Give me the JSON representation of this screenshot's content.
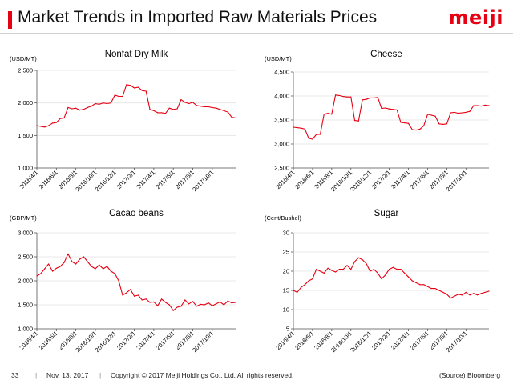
{
  "header": {
    "title": "Market Trends in Imported Raw Materials Prices",
    "logo": "meiji",
    "accent": "#e60012"
  },
  "footer": {
    "page": "33",
    "date": "Nov. 13, 2017",
    "copyright": "Copyright © 2017 Meiji Holdings Co., Ltd. All rights reserved.",
    "source": "(Source) Bloomberg",
    "separator": "|"
  },
  "chart_data": [
    {
      "type": "line",
      "title": "Nonfat Dry Milk",
      "ylabel": "(USD/MT)",
      "ylim": [
        1000,
        2500
      ],
      "yticks": [
        "1,000",
        "1,500",
        "2,000",
        "2,500"
      ],
      "ytick_values": [
        1000,
        1500,
        2000,
        2500
      ],
      "xticks": [
        "2016/4/1",
        "2016/6/1",
        "2016/8/1",
        "2016/10/1",
        "2016/12/1",
        "2017/2/1",
        "2017/4/1",
        "2017/6/1",
        "2017/8/1",
        "2017/10/1"
      ],
      "x": [
        0,
        0.2,
        0.4,
        0.6,
        0.8,
        1.0,
        1.2,
        1.4,
        1.6,
        1.8,
        2.0,
        2.2,
        2.4,
        2.6,
        2.8,
        3.0,
        3.2,
        3.4,
        3.6,
        3.8,
        4.0,
        4.2,
        4.4,
        4.6,
        4.8,
        5.0,
        5.2,
        5.4,
        5.6,
        5.8,
        6.0,
        6.2,
        6.4,
        6.6,
        6.8,
        7.0,
        7.2,
        7.4,
        7.6,
        7.8,
        8.0,
        8.2,
        8.4,
        8.6,
        8.8,
        9.0,
        9.2,
        9.4,
        9.6,
        9.8,
        10.0,
        10.2
      ],
      "series": [
        {
          "name": "Nonfat Dry Milk",
          "color": "#e60012",
          "values": [
            1650,
            1640,
            1630,
            1650,
            1690,
            1700,
            1760,
            1770,
            1930,
            1910,
            1920,
            1890,
            1900,
            1930,
            1950,
            1990,
            1980,
            2000,
            1990,
            2000,
            2120,
            2100,
            2100,
            2280,
            2270,
            2230,
            2240,
            2190,
            2180,
            1900,
            1880,
            1850,
            1850,
            1840,
            1920,
            1900,
            1910,
            2050,
            2010,
            1990,
            2010,
            1960,
            1950,
            1940,
            1940,
            1930,
            1920,
            1900,
            1880,
            1860,
            1780,
            1770
          ]
        }
      ]
    },
    {
      "type": "line",
      "title": "Cheese",
      "ylabel": "(USD/MT)",
      "ylim": [
        2500,
        4500
      ],
      "yticks": [
        "2,500",
        "3,000",
        "3,500",
        "4,000",
        "4,500"
      ],
      "ytick_values": [
        2500,
        3000,
        3500,
        4000,
        4500
      ],
      "xticks": [
        "2016/4/1",
        "2016/6/1",
        "2016/8/1",
        "2016/10/1",
        "2016/12/1",
        "2017/2/1",
        "2017/4/1",
        "2017/6/1",
        "2017/8/1",
        "2017/10/1"
      ],
      "x": [
        0,
        0.2,
        0.4,
        0.6,
        0.8,
        1.0,
        1.2,
        1.4,
        1.6,
        1.8,
        2.0,
        2.2,
        2.4,
        2.6,
        2.8,
        3.0,
        3.2,
        3.4,
        3.6,
        3.8,
        4.0,
        4.2,
        4.4,
        4.6,
        4.8,
        5.0,
        5.2,
        5.4,
        5.6,
        5.8,
        6.0,
        6.2,
        6.4,
        6.6,
        6.8,
        7.0,
        7.2,
        7.4,
        7.6,
        7.8,
        8.0,
        8.2,
        8.4,
        8.6,
        8.8,
        9.0,
        9.2,
        9.4,
        9.6,
        9.8,
        10.0,
        10.2
      ],
      "series": [
        {
          "name": "Cheese",
          "color": "#e60012",
          "values": [
            3350,
            3340,
            3330,
            3310,
            3120,
            3100,
            3200,
            3200,
            3620,
            3640,
            3620,
            4020,
            4010,
            3990,
            3980,
            3980,
            3490,
            3480,
            3920,
            3930,
            3960,
            3960,
            3970,
            3740,
            3750,
            3730,
            3720,
            3710,
            3450,
            3440,
            3430,
            3300,
            3290,
            3310,
            3380,
            3620,
            3600,
            3580,
            3420,
            3410,
            3420,
            3650,
            3660,
            3640,
            3650,
            3660,
            3680,
            3800,
            3800,
            3790,
            3810,
            3800
          ]
        }
      ]
    },
    {
      "type": "line",
      "title": "Cacao beans",
      "ylabel": "(GBP/MT)",
      "ylim": [
        1000,
        3000
      ],
      "yticks": [
        "1,000",
        "1,500",
        "2,000",
        "2,500",
        "3,000"
      ],
      "ytick_values": [
        1000,
        1500,
        2000,
        2500,
        3000
      ],
      "xticks": [
        "2016/4/1",
        "2016/6/1",
        "2016/8/1",
        "2016/10/1",
        "2016/12/1",
        "2017/2/1",
        "2017/4/1",
        "2017/6/1",
        "2017/8/1",
        "2017/10/1"
      ],
      "x": [
        0,
        0.2,
        0.4,
        0.6,
        0.8,
        1.0,
        1.2,
        1.4,
        1.6,
        1.8,
        2.0,
        2.2,
        2.4,
        2.6,
        2.8,
        3.0,
        3.2,
        3.4,
        3.6,
        3.8,
        4.0,
        4.2,
        4.4,
        4.6,
        4.8,
        5.0,
        5.2,
        5.4,
        5.6,
        5.8,
        6.0,
        6.2,
        6.4,
        6.6,
        6.8,
        7.0,
        7.2,
        7.4,
        7.6,
        7.8,
        8.0,
        8.2,
        8.4,
        8.6,
        8.8,
        9.0,
        9.2,
        9.4,
        9.6,
        9.8,
        10.0,
        10.2
      ],
      "series": [
        {
          "name": "Cacao beans",
          "color": "#e60012",
          "values": [
            2100,
            2150,
            2250,
            2350,
            2200,
            2260,
            2300,
            2380,
            2560,
            2400,
            2350,
            2450,
            2500,
            2400,
            2300,
            2250,
            2330,
            2250,
            2300,
            2200,
            2150,
            2000,
            1700,
            1750,
            1820,
            1680,
            1700,
            1600,
            1620,
            1550,
            1560,
            1480,
            1620,
            1550,
            1500,
            1380,
            1450,
            1470,
            1600,
            1520,
            1570,
            1470,
            1510,
            1500,
            1540,
            1480,
            1520,
            1560,
            1500,
            1580,
            1540,
            1550
          ]
        }
      ]
    },
    {
      "type": "line",
      "title": "Sugar",
      "ylabel": "(Cent/Bushel)",
      "ylim": [
        5,
        30
      ],
      "yticks": [
        "5",
        "10",
        "15",
        "20",
        "25",
        "30"
      ],
      "ytick_values": [
        5,
        10,
        15,
        20,
        25,
        30
      ],
      "xticks": [
        "2016/4/1",
        "2016/6/1",
        "2016/8/1",
        "2016/10/1",
        "2016/12/1",
        "2017/2/1",
        "2017/4/1",
        "2017/6/1",
        "2017/8/1",
        "2017/10/1"
      ],
      "x": [
        0,
        0.2,
        0.4,
        0.6,
        0.8,
        1.0,
        1.2,
        1.4,
        1.6,
        1.8,
        2.0,
        2.2,
        2.4,
        2.6,
        2.8,
        3.0,
        3.2,
        3.4,
        3.6,
        3.8,
        4.0,
        4.2,
        4.4,
        4.6,
        4.8,
        5.0,
        5.2,
        5.4,
        5.6,
        5.8,
        6.0,
        6.2,
        6.4,
        6.6,
        6.8,
        7.0,
        7.2,
        7.4,
        7.6,
        7.8,
        8.0,
        8.2,
        8.4,
        8.6,
        8.8,
        9.0,
        9.2,
        9.4,
        9.6,
        9.8,
        10.0,
        10.2
      ],
      "series": [
        {
          "name": "Sugar",
          "color": "#e60012",
          "values": [
            15.0,
            14.5,
            15.8,
            16.5,
            17.5,
            18.0,
            20.5,
            20.0,
            19.5,
            20.8,
            20.2,
            19.8,
            20.5,
            20.5,
            21.5,
            20.5,
            22.5,
            23.5,
            23.0,
            22.0,
            20.0,
            20.5,
            19.5,
            18.0,
            19.0,
            20.5,
            21.0,
            20.5,
            20.5,
            19.5,
            18.5,
            17.5,
            17.0,
            16.5,
            16.5,
            16.0,
            15.5,
            15.5,
            15.0,
            14.5,
            14.0,
            13.0,
            13.5,
            14.0,
            13.8,
            14.5,
            13.8,
            14.2,
            13.8,
            14.2,
            14.5,
            14.8
          ]
        }
      ]
    }
  ]
}
